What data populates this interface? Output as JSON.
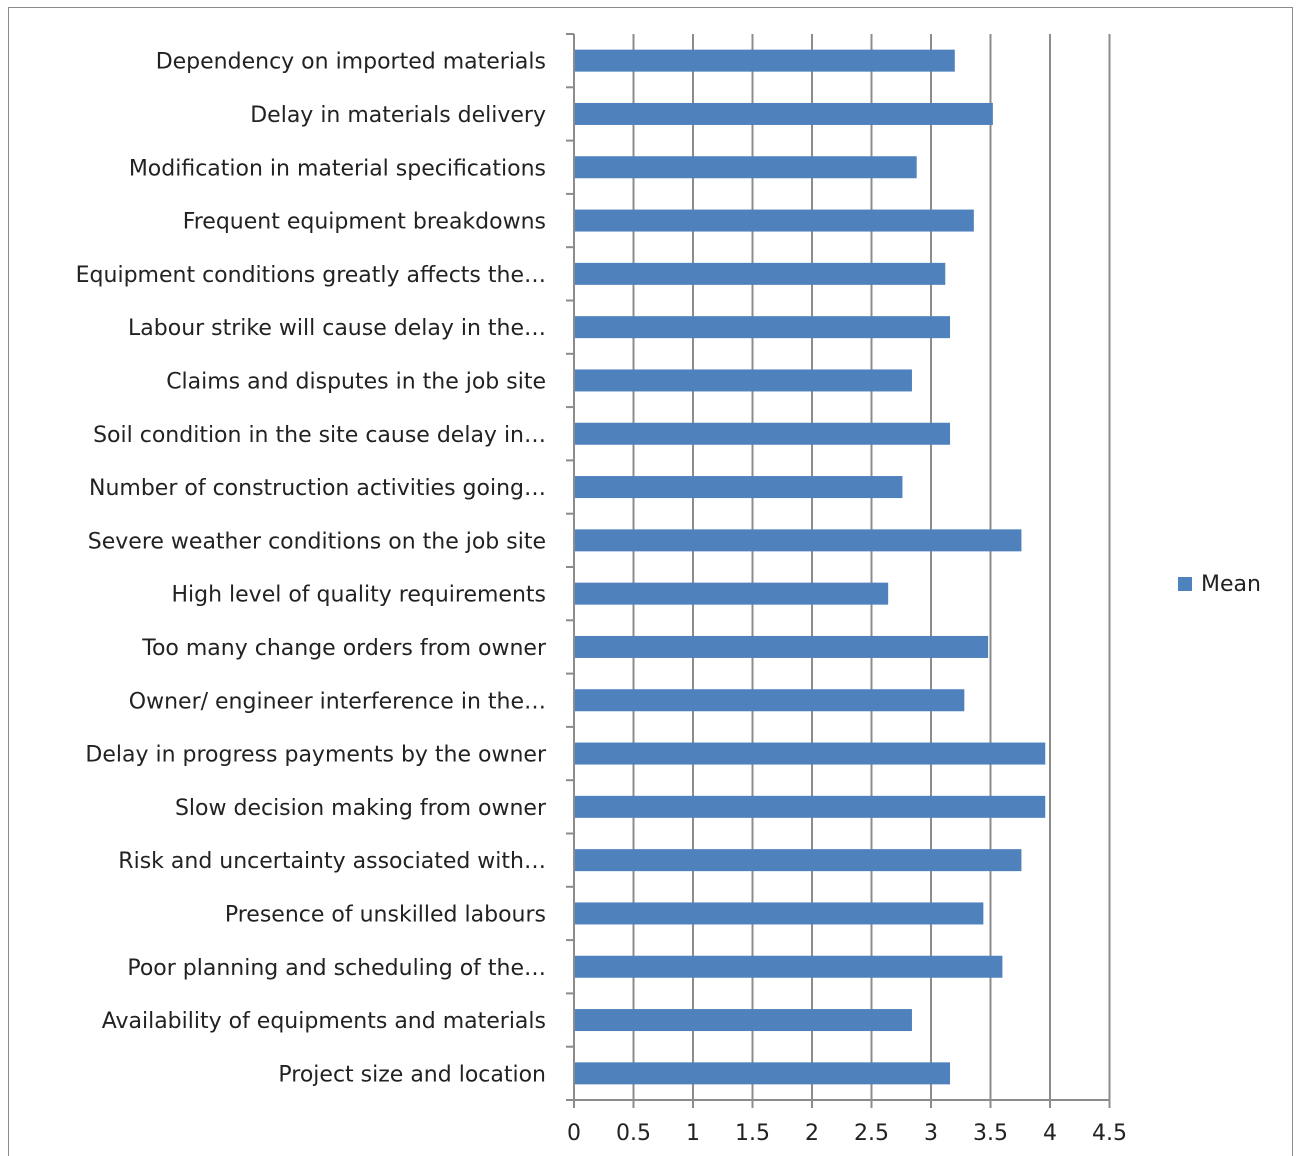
{
  "chart_data": {
    "type": "bar",
    "orientation": "horizontal",
    "title": "",
    "xlabel": "",
    "ylabel": "",
    "categories": [
      "Dependency on imported materials",
      "Delay in materials delivery",
      "Modification in material specifications",
      "Frequent equipment breakdowns",
      "Equipment conditions greatly affects the…",
      "Labour strike will cause delay in the…",
      "Claims and disputes in the job site",
      "Soil condition in the site cause delay in…",
      "Number of construction activities going…",
      "Severe weather conditions on the job site",
      "High level of quality requirements",
      "Too many change orders from owner",
      "Owner/ engineer interference in the…",
      "Delay in progress payments by the owner",
      "Slow decision making from owner",
      "Risk and uncertainty associated with…",
      "Presence of unskilled labours",
      "Poor planning and scheduling of the…",
      "Availability of equipments and materials",
      "Project size and location"
    ],
    "series": [
      {
        "name": "Mean",
        "color": "#4f81bd",
        "values": [
          3.2,
          3.52,
          2.88,
          3.36,
          3.12,
          3.16,
          2.84,
          3.16,
          2.76,
          3.76,
          2.64,
          3.48,
          3.28,
          3.96,
          3.96,
          3.76,
          3.44,
          3.6,
          2.84,
          3.16
        ]
      }
    ],
    "xlim": [
      0,
      4.5
    ],
    "xticks": [
      "0",
      "0.5",
      "1",
      "1.5",
      "2",
      "2.5",
      "3",
      "3.5",
      "4",
      "4.5"
    ],
    "xtick_values": [
      0,
      0.5,
      1,
      1.5,
      2,
      2.5,
      3,
      3.5,
      4,
      4.5
    ],
    "grid": "vertical",
    "gridline_color": "#8c8c8c",
    "legend": {
      "position": "right",
      "label": "Mean"
    }
  }
}
